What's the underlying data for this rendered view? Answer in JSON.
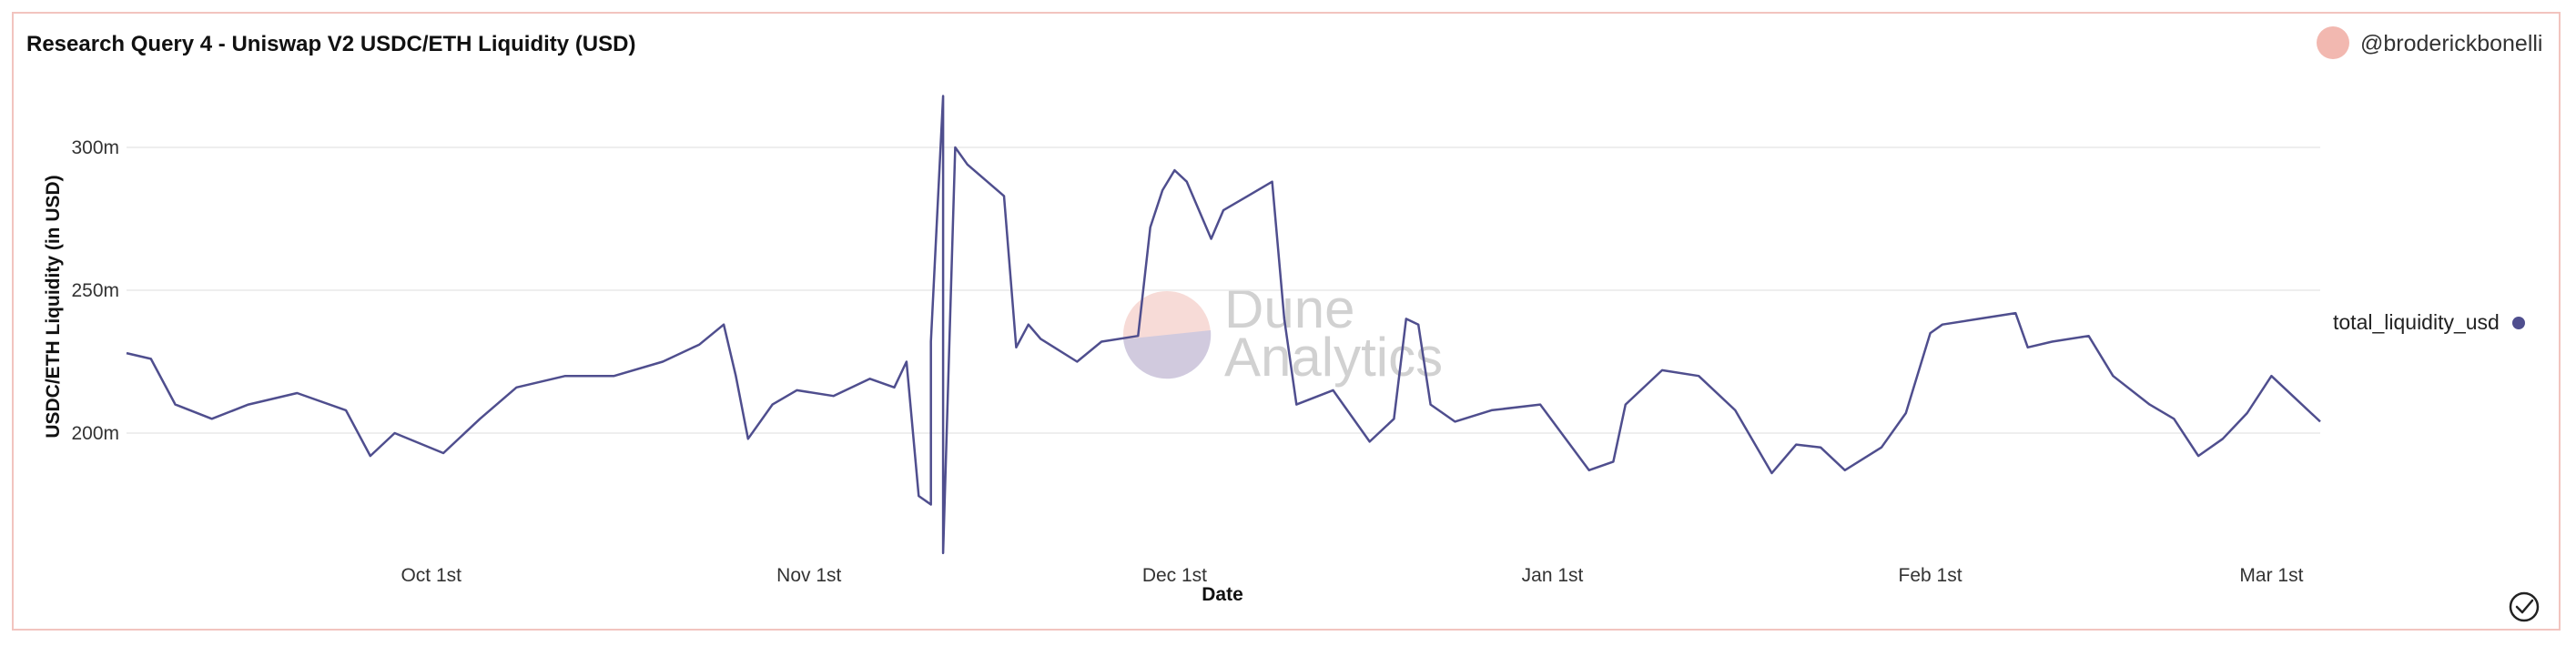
{
  "header": {
    "title": "Research Query 4 - Uniswap V2 USDC/ETH Liquidity (USD)",
    "author": "@broderickbonelli"
  },
  "watermark": {
    "line1": "Dune",
    "line2": "Analytics"
  },
  "colors": {
    "series": "#4f4e8e",
    "frame_border": "#f2c4bf",
    "avatar": "#f2b8b0",
    "gridline": "#e9e9e9"
  },
  "icons": {
    "avatar": "avatar-circle",
    "status": "check-circle-icon"
  },
  "chart_data": {
    "type": "line",
    "title": "Research Query 4 - Uniswap V2 USDC/ETH Liquidity (USD)",
    "xlabel": "Date",
    "ylabel": "USDC/ETH Liquidity (in USD)",
    "x_tick_labels": [
      "Oct 1st",
      "Nov 1st",
      "Dec 1st",
      "Jan 1st",
      "Feb 1st",
      "Mar 1st"
    ],
    "y_tick_labels": [
      "200m",
      "250m",
      "300m"
    ],
    "y_ticks": [
      200,
      250,
      300
    ],
    "y_unit": "millions USD",
    "ylim": [
      155,
      322
    ],
    "xlim": [
      "2021-09-06",
      "2022-03-05"
    ],
    "grid": true,
    "legend_position": "right",
    "series": [
      {
        "name": "total_liquidity_usd",
        "x": [
          "2021-09-06",
          "2021-09-08",
          "2021-09-10",
          "2021-09-13",
          "2021-09-16",
          "2021-09-20",
          "2021-09-24",
          "2021-09-26",
          "2021-09-28",
          "2021-10-02",
          "2021-10-05",
          "2021-10-08",
          "2021-10-12",
          "2021-10-16",
          "2021-10-20",
          "2021-10-23",
          "2021-10-25",
          "2021-10-26",
          "2021-10-27",
          "2021-10-29",
          "2021-10-31",
          "2021-11-03",
          "2021-11-06",
          "2021-11-08",
          "2021-11-09",
          "2021-11-10",
          "2021-11-11",
          "2021-11-11",
          "2021-11-12",
          "2021-11-12",
          "2021-11-13",
          "2021-11-14",
          "2021-11-17",
          "2021-11-18",
          "2021-11-19",
          "2021-11-20",
          "2021-11-23",
          "2021-11-25",
          "2021-11-28",
          "2021-11-29",
          "2021-11-30",
          "2021-12-01",
          "2021-12-02",
          "2021-12-04",
          "2021-12-05",
          "2021-12-07",
          "2021-12-09",
          "2021-12-10",
          "2021-12-11",
          "2021-12-14",
          "2021-12-17",
          "2021-12-19",
          "2021-12-20",
          "2021-12-21",
          "2021-12-22",
          "2021-12-24",
          "2021-12-27",
          "2021-12-31",
          "2022-01-04",
          "2022-01-06",
          "2022-01-07",
          "2022-01-10",
          "2022-01-13",
          "2022-01-16",
          "2022-01-19",
          "2022-01-21",
          "2022-01-23",
          "2022-01-25",
          "2022-01-28",
          "2022-01-30",
          "2022-02-01",
          "2022-02-02",
          "2022-02-05",
          "2022-02-08",
          "2022-02-09",
          "2022-02-11",
          "2022-02-14",
          "2022-02-16",
          "2022-02-19",
          "2022-02-21",
          "2022-02-23",
          "2022-02-25",
          "2022-02-27",
          "2022-03-01",
          "2022-03-03",
          "2022-03-05"
        ],
        "values": [
          228,
          226,
          210,
          205,
          210,
          214,
          208,
          192,
          200,
          193,
          205,
          216,
          220,
          220,
          225,
          231,
          238,
          220,
          198,
          210,
          215,
          213,
          219,
          216,
          225,
          178,
          175,
          232,
          318,
          158,
          300,
          294,
          283,
          230,
          238,
          233,
          225,
          232,
          234,
          272,
          285,
          292,
          288,
          268,
          278,
          283,
          288,
          240,
          210,
          215,
          197,
          205,
          240,
          238,
          210,
          204,
          208,
          210,
          187,
          190,
          210,
          222,
          220,
          208,
          186,
          196,
          195,
          187,
          195,
          207,
          235,
          238,
          240,
          242,
          230,
          232,
          234,
          220,
          210,
          205,
          192,
          198,
          207,
          220,
          212,
          204
        ]
      }
    ]
  }
}
